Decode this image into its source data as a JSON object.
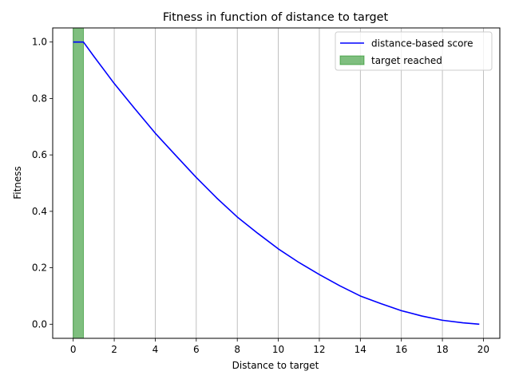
{
  "chart_data": {
    "type": "line",
    "title": "Fitness in function of distance to target",
    "xlabel": "Distance to target",
    "ylabel": "Fitness",
    "xlim": [
      -1.0,
      20.8
    ],
    "ylim": [
      -0.05,
      1.05
    ],
    "xticks": [
      0,
      2,
      4,
      6,
      8,
      10,
      12,
      14,
      16,
      18,
      20
    ],
    "yticks": [
      0.0,
      0.2,
      0.4,
      0.6,
      0.8,
      1.0
    ],
    "xtick_labels": [
      "0",
      "2",
      "4",
      "6",
      "8",
      "10",
      "12",
      "14",
      "16",
      "18",
      "20"
    ],
    "ytick_labels": [
      "0.0",
      "0.2",
      "0.4",
      "0.6",
      "0.8",
      "1.0"
    ],
    "grid": "vertical",
    "legend_position": "top-right",
    "series": [
      {
        "name": "distance-based score",
        "color": "#0000ff",
        "x": [
          0,
          0.5,
          1,
          2,
          3,
          4,
          5,
          6,
          7,
          8,
          9,
          10,
          11,
          12,
          13,
          14,
          15,
          16,
          17,
          18,
          19,
          19.8
        ],
        "y": [
          1.0,
          1.0,
          0.95,
          0.853,
          0.764,
          0.677,
          0.598,
          0.52,
          0.447,
          0.38,
          0.322,
          0.267,
          0.219,
          0.176,
          0.136,
          0.1,
          0.073,
          0.048,
          0.029,
          0.014,
          0.005,
          0.0
        ]
      }
    ],
    "shaded_regions": [
      {
        "name": "target reached",
        "color": "#008000",
        "x_start": 0.0,
        "x_end": 0.5
      }
    ]
  }
}
